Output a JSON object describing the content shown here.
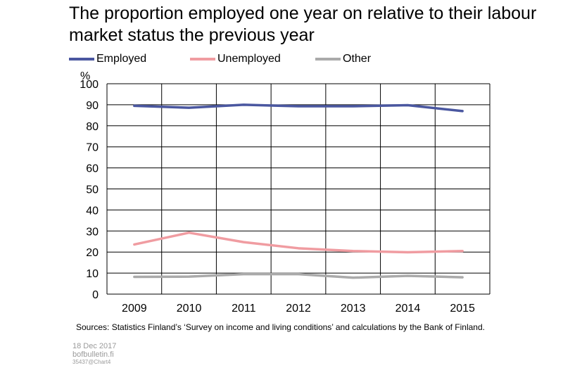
{
  "title": "The proportion employed one year on relative to their labour market status the previous year",
  "legend": [
    {
      "label": "Employed",
      "color": "#4a57a0"
    },
    {
      "label": "Unemployed",
      "color": "#f09ca1"
    },
    {
      "label": "Other",
      "color": "#aaaaaa"
    }
  ],
  "footer": {
    "source": "Sources: Statistics Finland’s ‘Survey on income and living conditions’ and calculations by the Bank of Finland.",
    "date": "18 Dec 2017",
    "site": "bofbulletin.fi",
    "chart_id": "35437@Chart4"
  },
  "chart_data": {
    "type": "line",
    "ylabel": "%",
    "ylim": [
      0,
      100
    ],
    "yticks": [
      0,
      10,
      20,
      30,
      40,
      50,
      60,
      70,
      80,
      90,
      100
    ],
    "categories": [
      "2009",
      "2010",
      "2011",
      "2012",
      "2013",
      "2014",
      "2015"
    ],
    "grid": true,
    "legend_position": "top-left",
    "series": [
      {
        "name": "Employed",
        "color": "#4a57a0",
        "values": [
          89.5,
          88.6,
          90.0,
          89.3,
          89.3,
          89.8,
          87.0
        ]
      },
      {
        "name": "Unemployed",
        "color": "#f09ca1",
        "values": [
          23.6,
          29.2,
          24.7,
          21.8,
          20.5,
          19.9,
          20.5
        ]
      },
      {
        "name": "Other",
        "color": "#aaaaaa",
        "values": [
          8.2,
          8.3,
          9.5,
          9.5,
          7.8,
          8.7,
          8.0
        ]
      }
    ]
  }
}
